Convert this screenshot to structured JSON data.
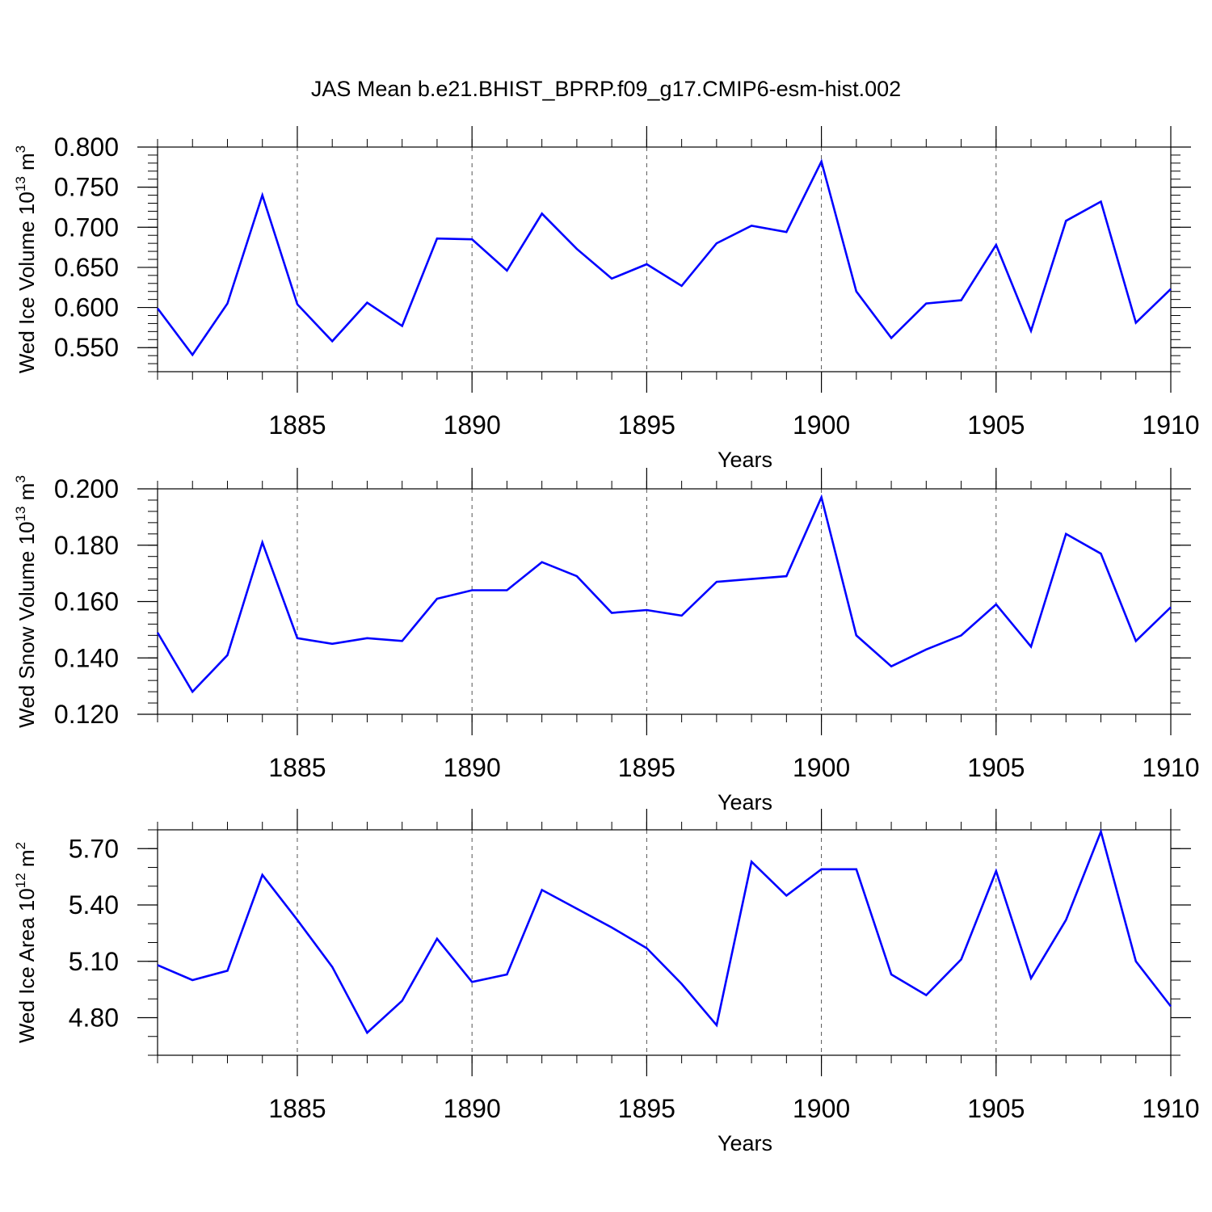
{
  "title": "JAS Mean b.e21.BHIST_BPRP.f09_g17.CMIP6-esm-hist.002",
  "colors": {
    "line": "#0000ff",
    "axis": "#000000",
    "grid": "#555555"
  },
  "chart_data": [
    {
      "type": "line",
      "ylabel": "Wed Ice Volume 10",
      "ylabel_sup": "13",
      "ylabel_tail": " m",
      "ylabel_sup2": "3",
      "xlabel": "Years",
      "xlim": [
        1881,
        1910
      ],
      "ylim": [
        0.52,
        0.8
      ],
      "xticks": [
        1885,
        1890,
        1895,
        1900,
        1905,
        1910
      ],
      "xtick_labels": [
        "1885",
        "1890",
        "1895",
        "1900",
        "1905",
        "1910"
      ],
      "yticks": [
        0.55,
        0.6,
        0.65,
        0.7,
        0.75,
        0.8
      ],
      "ytick_labels": [
        "0.550",
        "0.600",
        "0.650",
        "0.700",
        "0.750",
        "0.800"
      ],
      "yminor_step": 0.01,
      "series": [
        {
          "name": "Wed Ice Volume",
          "x": [
            1881,
            1882,
            1883,
            1884,
            1885,
            1886,
            1887,
            1888,
            1889,
            1890,
            1891,
            1892,
            1893,
            1894,
            1895,
            1896,
            1897,
            1898,
            1899,
            1900,
            1901,
            1902,
            1903,
            1904,
            1905,
            1906,
            1907,
            1908,
            1909,
            1910
          ],
          "values": [
            0.599,
            0.541,
            0.605,
            0.74,
            0.604,
            0.558,
            0.606,
            0.577,
            0.686,
            0.685,
            0.646,
            0.717,
            0.673,
            0.636,
            0.654,
            0.627,
            0.68,
            0.702,
            0.694,
            0.782,
            0.62,
            0.562,
            0.605,
            0.609,
            0.678,
            0.571,
            0.708,
            0.732,
            0.581,
            0.623
          ]
        }
      ]
    },
    {
      "type": "line",
      "ylabel": "Wed Snow Volume 10",
      "ylabel_sup": "13",
      "ylabel_tail": " m",
      "ylabel_sup2": "3",
      "xlabel": "Years",
      "xlim": [
        1881,
        1910
      ],
      "ylim": [
        0.12,
        0.2
      ],
      "xticks": [
        1885,
        1890,
        1895,
        1900,
        1905,
        1910
      ],
      "xtick_labels": [
        "1885",
        "1890",
        "1895",
        "1900",
        "1905",
        "1910"
      ],
      "yticks": [
        0.12,
        0.14,
        0.16,
        0.18,
        0.2
      ],
      "ytick_labels": [
        "0.120",
        "0.140",
        "0.160",
        "0.180",
        "0.200"
      ],
      "yminor_step": 0.004,
      "series": [
        {
          "name": "Wed Snow Volume",
          "x": [
            1881,
            1882,
            1883,
            1884,
            1885,
            1886,
            1887,
            1888,
            1889,
            1890,
            1891,
            1892,
            1893,
            1894,
            1895,
            1896,
            1897,
            1898,
            1899,
            1900,
            1901,
            1902,
            1903,
            1904,
            1905,
            1906,
            1907,
            1908,
            1909,
            1910
          ],
          "values": [
            0.149,
            0.128,
            0.141,
            0.181,
            0.147,
            0.145,
            0.147,
            0.146,
            0.161,
            0.164,
            0.164,
            0.174,
            0.169,
            0.156,
            0.157,
            0.155,
            0.167,
            0.168,
            0.169,
            0.197,
            0.148,
            0.137,
            0.143,
            0.148,
            0.159,
            0.144,
            0.184,
            0.177,
            0.146,
            0.158
          ]
        }
      ]
    },
    {
      "type": "line",
      "ylabel": "Wed Ice Area 10",
      "ylabel_sup": "12",
      "ylabel_tail": " m",
      "ylabel_sup2": "2",
      "xlabel": "Years",
      "xlim": [
        1881,
        1910
      ],
      "ylim": [
        4.6,
        5.8
      ],
      "xticks": [
        1885,
        1890,
        1895,
        1900,
        1905,
        1910
      ],
      "xtick_labels": [
        "1885",
        "1890",
        "1895",
        "1900",
        "1905",
        "1910"
      ],
      "yticks": [
        4.8,
        5.1,
        5.4,
        5.7
      ],
      "ytick_labels": [
        "4.80",
        "5.10",
        "5.40",
        "5.70"
      ],
      "yminor_step": 0.1,
      "series": [
        {
          "name": "Wed Ice Area",
          "x": [
            1881,
            1882,
            1883,
            1884,
            1885,
            1886,
            1887,
            1888,
            1889,
            1890,
            1891,
            1892,
            1893,
            1894,
            1895,
            1896,
            1897,
            1898,
            1899,
            1900,
            1901,
            1902,
            1903,
            1904,
            1905,
            1906,
            1907,
            1908,
            1909,
            1910
          ],
          "values": [
            5.08,
            5.0,
            5.05,
            5.56,
            5.32,
            5.07,
            4.72,
            4.89,
            5.22,
            4.99,
            5.03,
            5.48,
            5.38,
            5.28,
            5.17,
            4.98,
            4.76,
            5.63,
            5.45,
            5.59,
            5.59,
            5.03,
            4.92,
            5.11,
            5.58,
            5.01,
            5.32,
            5.79,
            5.1,
            4.86
          ]
        }
      ]
    }
  ]
}
